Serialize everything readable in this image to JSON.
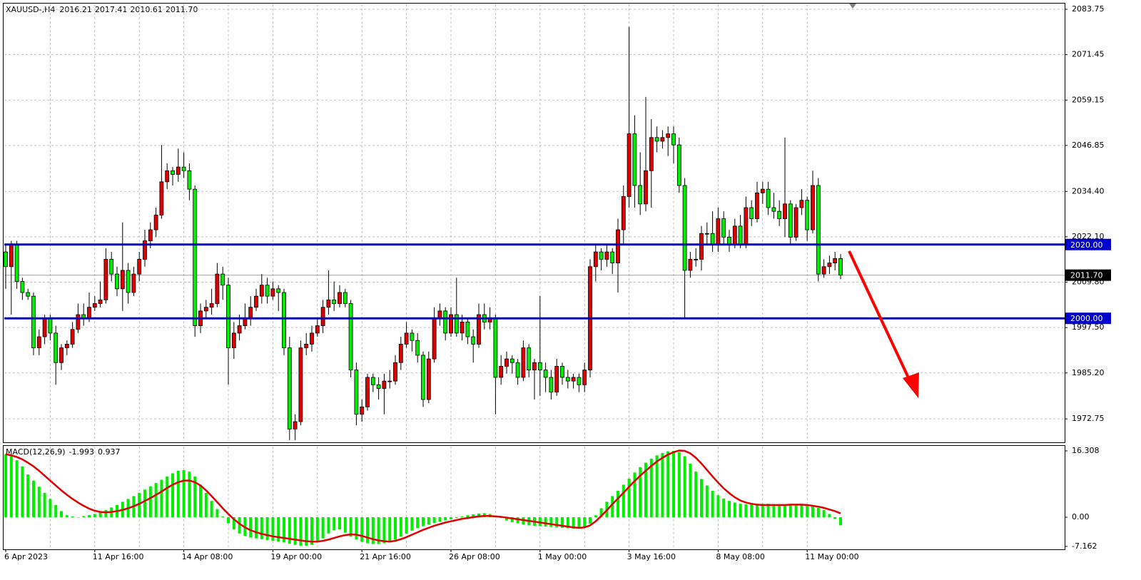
{
  "chart_data": {
    "type": "candlestick",
    "symbol": "XAUUSD-,H4",
    "header_labels": [
      "2016.21",
      "2017.41",
      "2010.61",
      "2011.70"
    ],
    "up_color": "#e00000",
    "down_color": "#00ee00",
    "grid": true,
    "categories": [
      "6 Apr 2023",
      null,
      null,
      null,
      null,
      null,
      null,
      null,
      null,
      null,
      null,
      null,
      null,
      null,
      null,
      null,
      "11 Apr 16:00",
      null,
      null,
      null,
      null,
      null,
      null,
      null,
      null,
      null,
      null,
      null,
      null,
      null,
      null,
      null,
      "14 Apr 08:00",
      null,
      null,
      null,
      null,
      null,
      null,
      null,
      null,
      null,
      null,
      null,
      null,
      null,
      null,
      null,
      "19 Apr 00:00",
      null,
      null,
      null,
      null,
      null,
      null,
      null,
      null,
      null,
      null,
      null,
      null,
      null,
      null,
      null,
      "21 Apr 16:00",
      null,
      null,
      null,
      null,
      null,
      null,
      null,
      null,
      null,
      null,
      null,
      null,
      null,
      null,
      null,
      "26 Apr 08:00",
      null,
      null,
      null,
      null,
      null,
      null,
      null,
      null,
      null,
      null,
      null,
      null,
      null,
      null,
      null,
      "1 May 00:00",
      null,
      null,
      null,
      null,
      null,
      null,
      null,
      null,
      null,
      null,
      null,
      null,
      null,
      null,
      null,
      "3 May 16:00",
      null,
      null,
      null,
      null,
      null,
      null,
      null,
      null,
      null,
      null,
      null,
      null,
      null,
      null,
      null,
      "8 May 08:00",
      null,
      null,
      null,
      null,
      null,
      null,
      null,
      null,
      null,
      null,
      null,
      null,
      null,
      null,
      null,
      "11 May 00:00",
      null,
      null,
      null,
      null,
      null,
      null
    ],
    "candles": [
      [
        2018,
        2020,
        2008,
        2014
      ],
      [
        2014,
        2021,
        2001,
        2020
      ],
      [
        2020,
        2021,
        2008,
        2010
      ],
      [
        2010,
        2011,
        2005,
        2007
      ],
      [
        2007,
        2008,
        2005,
        2006
      ],
      [
        2006,
        2007,
        1990,
        1992
      ],
      [
        1992,
        1997,
        1990,
        1995
      ],
      [
        1995,
        2001,
        1993,
        2000
      ],
      [
        2000,
        2001,
        1994,
        1996
      ],
      [
        1996,
        1998,
        1982,
        1988
      ],
      [
        1988,
        1993,
        1986,
        1992
      ],
      [
        1992,
        1994,
        1990,
        1993
      ],
      [
        1993,
        1999,
        1992,
        1997
      ],
      [
        1997,
        2004,
        1996,
        2001
      ],
      [
        2001,
        2004,
        1998,
        2000
      ],
      [
        2000,
        2007,
        1999,
        2003
      ],
      [
        2003,
        2006,
        2002,
        2004
      ],
      [
        2004,
        2010,
        2003,
        2005
      ],
      [
        2005,
        2019,
        2004,
        2016
      ],
      [
        2016,
        2018,
        2010,
        2012
      ],
      [
        2012,
        2014,
        2006,
        2008
      ],
      [
        2008,
        2026,
        2002,
        2013
      ],
      [
        2013,
        2015,
        2004,
        2007
      ],
      [
        2007,
        2014,
        2006,
        2012
      ],
      [
        2012,
        2018,
        2010,
        2016
      ],
      [
        2016,
        2024,
        2014,
        2021
      ],
      [
        2021,
        2026,
        2019,
        2024
      ],
      [
        2024,
        2030,
        2022,
        2028
      ],
      [
        2028,
        2047,
        2027,
        2037
      ],
      [
        2037,
        2042,
        2035,
        2040
      ],
      [
        2040,
        2041,
        2036,
        2039
      ],
      [
        2039,
        2046,
        2037,
        2041
      ],
      [
        2041,
        2045,
        2038,
        2040
      ],
      [
        2040,
        2042,
        2032,
        2035
      ],
      [
        2035,
        2036,
        1995,
        1998
      ],
      [
        1998,
        2004,
        1996,
        2002
      ],
      [
        2002,
        2005,
        2000,
        2003
      ],
      [
        2003,
        2008,
        2001,
        2004
      ],
      [
        2004,
        2015,
        2003,
        2012
      ],
      [
        2012,
        2014,
        2005,
        2009
      ],
      [
        2009,
        2011,
        1982,
        1992
      ],
      [
        1992,
        1999,
        1989,
        1996
      ],
      [
        1996,
        2001,
        1994,
        1998
      ],
      [
        1998,
        2004,
        1997,
        2000
      ],
      [
        2000,
        2006,
        1998,
        2003
      ],
      [
        2003,
        2008,
        2002,
        2006
      ],
      [
        2006,
        2012,
        2004,
        2009
      ],
      [
        2009,
        2011,
        2004,
        2006
      ],
      [
        2006,
        2010,
        2005,
        2008
      ],
      [
        2008,
        2009,
        2002,
        2007
      ],
      [
        2007,
        2008,
        1990,
        1992
      ],
      [
        1992,
        1995,
        1967,
        1970
      ],
      [
        1970,
        1974,
        1967,
        1972
      ],
      [
        1972,
        1994,
        1971,
        1992
      ],
      [
        1992,
        1996,
        1990,
        1993
      ],
      [
        1993,
        1998,
        1991,
        1996
      ],
      [
        1996,
        2000,
        1995,
        1998
      ],
      [
        1998,
        2005,
        1996,
        2003
      ],
      [
        2003,
        2013,
        2001,
        2005
      ],
      [
        2005,
        2010,
        2002,
        2004
      ],
      [
        2004,
        2009,
        2003,
        2007
      ],
      [
        2007,
        2008,
        2003,
        2004
      ],
      [
        2004,
        2005,
        1984,
        1986
      ],
      [
        1986,
        1988,
        1971,
        1974
      ],
      [
        1974,
        1978,
        1972,
        1976
      ],
      [
        1976,
        1985,
        1975,
        1984
      ],
      [
        1984,
        1985,
        1980,
        1982
      ],
      [
        1982,
        1984,
        1978,
        1981
      ],
      [
        1981,
        1985,
        1974,
        1983
      ],
      [
        1983,
        1986,
        1981,
        1983
      ],
      [
        1983,
        1990,
        1982,
        1988
      ],
      [
        1988,
        1995,
        1986,
        1993
      ],
      [
        1993,
        1999,
        1992,
        1996
      ],
      [
        1996,
        1997,
        1991,
        1994
      ],
      [
        1994,
        1996,
        1988,
        1990
      ],
      [
        1990,
        1991,
        1976,
        1978
      ],
      [
        1978,
        1991,
        1977,
        1989
      ],
      [
        1989,
        2003,
        1988,
        2000
      ],
      [
        2000,
        2004,
        1998,
        2002
      ],
      [
        2002,
        2003,
        1994,
        1996
      ],
      [
        1996,
        2003,
        1995,
        2001
      ],
      [
        2001,
        2011,
        1995,
        1996
      ],
      [
        1996,
        2001,
        1994,
        1999
      ],
      [
        1999,
        2000,
        1993,
        1995
      ],
      [
        1995,
        1997,
        1988,
        1993
      ],
      [
        1993,
        2004,
        1992,
        2001
      ],
      [
        2001,
        2004,
        1997,
        1999
      ],
      [
        1999,
        2003,
        1997,
        2000
      ],
      [
        2000,
        2001,
        1974,
        1984
      ],
      [
        1984,
        1990,
        1982,
        1987
      ],
      [
        1987,
        1991,
        1985,
        1989
      ],
      [
        1989,
        1990,
        1985,
        1988
      ],
      [
        1988,
        1989,
        1982,
        1984
      ],
      [
        1984,
        1994,
        1983,
        1992
      ],
      [
        1992,
        1993,
        1984,
        1986
      ],
      [
        1986,
        1989,
        1978,
        1988
      ],
      [
        1988,
        2006,
        1979,
        1986
      ],
      [
        1986,
        1988,
        1980,
        1984
      ],
      [
        1984,
        1986,
        1978,
        1980
      ],
      [
        1980,
        1989,
        1979,
        1987
      ],
      [
        1987,
        1988,
        1982,
        1984
      ],
      [
        1984,
        1986,
        1981,
        1983
      ],
      [
        1983,
        1985,
        1981,
        1984
      ],
      [
        1984,
        1985,
        1980,
        1982
      ],
      [
        1982,
        1988,
        1980,
        1986
      ],
      [
        1986,
        2016,
        1984,
        2014
      ],
      [
        2014,
        2020,
        2010,
        2018
      ],
      [
        2018,
        2019,
        2013,
        2016
      ],
      [
        2016,
        2020,
        2014,
        2018
      ],
      [
        2018,
        2019,
        2012,
        2015
      ],
      [
        2015,
        2027,
        2007,
        2024
      ],
      [
        2024,
        2036,
        2020,
        2033
      ],
      [
        2033,
        2079,
        2030,
        2050
      ],
      [
        2050,
        2055,
        2030,
        2036
      ],
      [
        2036,
        2045,
        2028,
        2031
      ],
      [
        2031,
        2060,
        2029,
        2040
      ],
      [
        2040,
        2054,
        2030,
        2049
      ],
      [
        2049,
        2052,
        2045,
        2048
      ],
      [
        2048,
        2051,
        2046,
        2049
      ],
      [
        2049,
        2052,
        2044,
        2050
      ],
      [
        2050,
        2052,
        2042,
        2047
      ],
      [
        2047,
        2049,
        2034,
        2036
      ],
      [
        2036,
        2038,
        2000,
        2013
      ],
      [
        2013,
        2018,
        2011,
        2016
      ],
      [
        2016,
        2019,
        2014,
        2016
      ],
      [
        2016,
        2025,
        2013,
        2023
      ],
      [
        2023,
        2026,
        2020,
        2023
      ],
      [
        2023,
        2029,
        2018,
        2020
      ],
      [
        2020,
        2030,
        2018,
        2027
      ],
      [
        2027,
        2029,
        2020,
        2022
      ],
      [
        2022,
        2024,
        2018,
        2020
      ],
      [
        2020,
        2027,
        2019,
        2025
      ],
      [
        2025,
        2028,
        2019,
        2020
      ],
      [
        2020,
        2033,
        2019,
        2030
      ],
      [
        2030,
        2032,
        2025,
        2027
      ],
      [
        2027,
        2037,
        2026,
        2034
      ],
      [
        2034,
        2037,
        2031,
        2035
      ],
      [
        2035,
        2037,
        2028,
        2030
      ],
      [
        2030,
        2034,
        2027,
        2029
      ],
      [
        2029,
        2032,
        2025,
        2027
      ],
      [
        2027,
        2049,
        2022,
        2031
      ],
      [
        2031,
        2032,
        2020,
        2022
      ],
      [
        2022,
        2031,
        2021,
        2030
      ],
      [
        2030,
        2035,
        2028,
        2032
      ],
      [
        2032,
        2033,
        2021,
        2024
      ],
      [
        2024,
        2040,
        2023,
        2036
      ],
      [
        2036,
        2038,
        2010,
        2012
      ],
      [
        2012,
        2016,
        2011,
        2014
      ],
      [
        2014,
        2017,
        2012,
        2015
      ],
      [
        2015,
        2018,
        2013,
        2016.21
      ],
      [
        2016.21,
        2017.41,
        2010.61,
        2011.7
      ]
    ],
    "ylim": [
      1966.4,
      2085.3
    ],
    "yticks": [
      2083.75,
      2071.45,
      2059.15,
      2046.85,
      {
        "value": 2034.4,
        "label": "2034.40"
      },
      {
        "value": 2022.1,
        "label": "2022.10"
      },
      {
        "value": 2009.8,
        "label": "2009.80"
      },
      {
        "value": 1997.5,
        "label": "1997.50"
      },
      {
        "value": 1985.2,
        "label": "1985.20"
      },
      1972.75
    ],
    "levels": [
      {
        "value": 2020,
        "label": "2020.00",
        "color": "#0000cc"
      },
      {
        "value": 2000,
        "label": "2000.00",
        "color": "#0000cc"
      }
    ],
    "last_price": {
      "value": 2011.7,
      "label": "2011.70"
    },
    "macd": {
      "label": "MACD(12,26,9)",
      "histogram_color": "#00ee00",
      "signal_color": "#e00000",
      "ylim": [
        -7.89,
        17.535
      ],
      "yticks": [
        16.308,
        {
          "value": 0,
          "label": "0.00"
        },
        -7.162
      ],
      "histogram": [
        15.5,
        15.0,
        14.0,
        12.5,
        10.5,
        9.0,
        7.5,
        6.0,
        4.5,
        3.0,
        1.5,
        0.5,
        0.2,
        0.0,
        0.3,
        0.5,
        0.8,
        1.2,
        1.8,
        2.4,
        3.0,
        3.8,
        4.5,
        5.2,
        6.0,
        6.8,
        7.6,
        8.4,
        9.2,
        10.0,
        10.8,
        11.4,
        11.6,
        11.2,
        10.0,
        8.0,
        6.0,
        4.0,
        2.0,
        0.2,
        -1.5,
        -3.0,
        -4.0,
        -4.6,
        -5.0,
        -5.2,
        -5.4,
        -5.6,
        -5.8,
        -6.0,
        -6.2,
        -6.5,
        -6.8,
        -7.0,
        -7.0,
        -6.8,
        -6.2,
        -5.2,
        -4.0,
        -3.2,
        -3.0,
        -3.8,
        -4.8,
        -5.5,
        -6.0,
        -6.4,
        -6.6,
        -6.6,
        -6.4,
        -6.0,
        -5.5,
        -4.8,
        -4.0,
        -3.3,
        -2.7,
        -2.2,
        -1.8,
        -1.4,
        -1.1,
        -0.8,
        -0.5,
        -0.2,
        0.2,
        0.5,
        0.7,
        0.9,
        1.0,
        0.8,
        0.4,
        -0.2,
        -0.8,
        -1.2,
        -1.5,
        -1.8,
        -2.0,
        -2.1,
        -2.2,
        -2.3,
        -2.4,
        -2.5,
        -2.6,
        -2.7,
        -2.8,
        -2.8,
        -2.5,
        -1.6,
        0.5,
        2.2,
        3.8,
        5.2,
        6.5,
        8.0,
        9.5,
        11.0,
        12.3,
        13.4,
        14.4,
        15.2,
        15.8,
        16.2,
        16.3,
        16.0,
        15.0,
        13.2,
        11.2,
        9.4,
        7.8,
        6.5,
        5.4,
        4.6,
        4.0,
        3.6,
        3.3,
        3.2,
        3.2,
        3.3,
        3.3,
        3.3,
        3.2,
        3.2,
        3.1,
        3.1,
        3.0,
        2.9,
        2.8,
        2.6,
        2.3,
        1.8,
        0.8,
        -0.4,
        -1.993
      ],
      "signal": [
        15.5,
        15.2,
        14.8,
        14.2,
        13.4,
        12.5,
        11.4,
        10.2,
        9.0,
        7.8,
        6.6,
        5.5,
        4.5,
        3.6,
        2.8,
        2.1,
        1.6,
        1.3,
        1.2,
        1.3,
        1.5,
        1.8,
        2.2,
        2.7,
        3.3,
        4.0,
        4.7,
        5.5,
        6.3,
        7.2,
        8.0,
        8.6,
        9.0,
        9.0,
        8.6,
        7.8,
        6.6,
        5.2,
        3.7,
        2.2,
        0.8,
        -0.5,
        -1.6,
        -2.5,
        -3.2,
        -3.7,
        -4.1,
        -4.4,
        -4.7,
        -4.9,
        -5.1,
        -5.3,
        -5.5,
        -5.7,
        -5.9,
        -6.0,
        -6.0,
        -5.8,
        -5.5,
        -5.1,
        -4.7,
        -4.4,
        -4.2,
        -4.3,
        -4.6,
        -5.0,
        -5.4,
        -5.7,
        -5.9,
        -6.0,
        -5.8,
        -5.4,
        -4.9,
        -4.3,
        -3.7,
        -3.1,
        -2.6,
        -2.1,
        -1.7,
        -1.3,
        -1.0,
        -0.7,
        -0.4,
        -0.2,
        0,
        0.2,
        0.3,
        0.3,
        0.2,
        0.1,
        -0.1,
        -0.3,
        -0.5,
        -0.7,
        -0.9,
        -1.1,
        -1.3,
        -1.5,
        -1.7,
        -1.9,
        -2.1,
        -2.3,
        -2.5,
        -2.6,
        -2.5,
        -2.0,
        -1.0,
        0.3,
        1.7,
        3.2,
        4.6,
        6.0,
        7.5,
        8.9,
        10.2,
        11.4,
        12.6,
        13.7,
        14.6,
        15.4,
        16.0,
        16.4,
        16.3,
        15.7,
        14.6,
        13.2,
        11.6,
        10.0,
        8.5,
        7.1,
        5.9,
        4.9,
        4.1,
        3.6,
        3.3,
        3.1,
        3.0,
        3.0,
        3.0,
        3.0,
        3.0,
        3.1,
        3.1,
        3.1,
        3.0,
        2.8,
        2.6,
        2.3,
        1.9,
        1.5,
        0.937
      ]
    }
  }
}
